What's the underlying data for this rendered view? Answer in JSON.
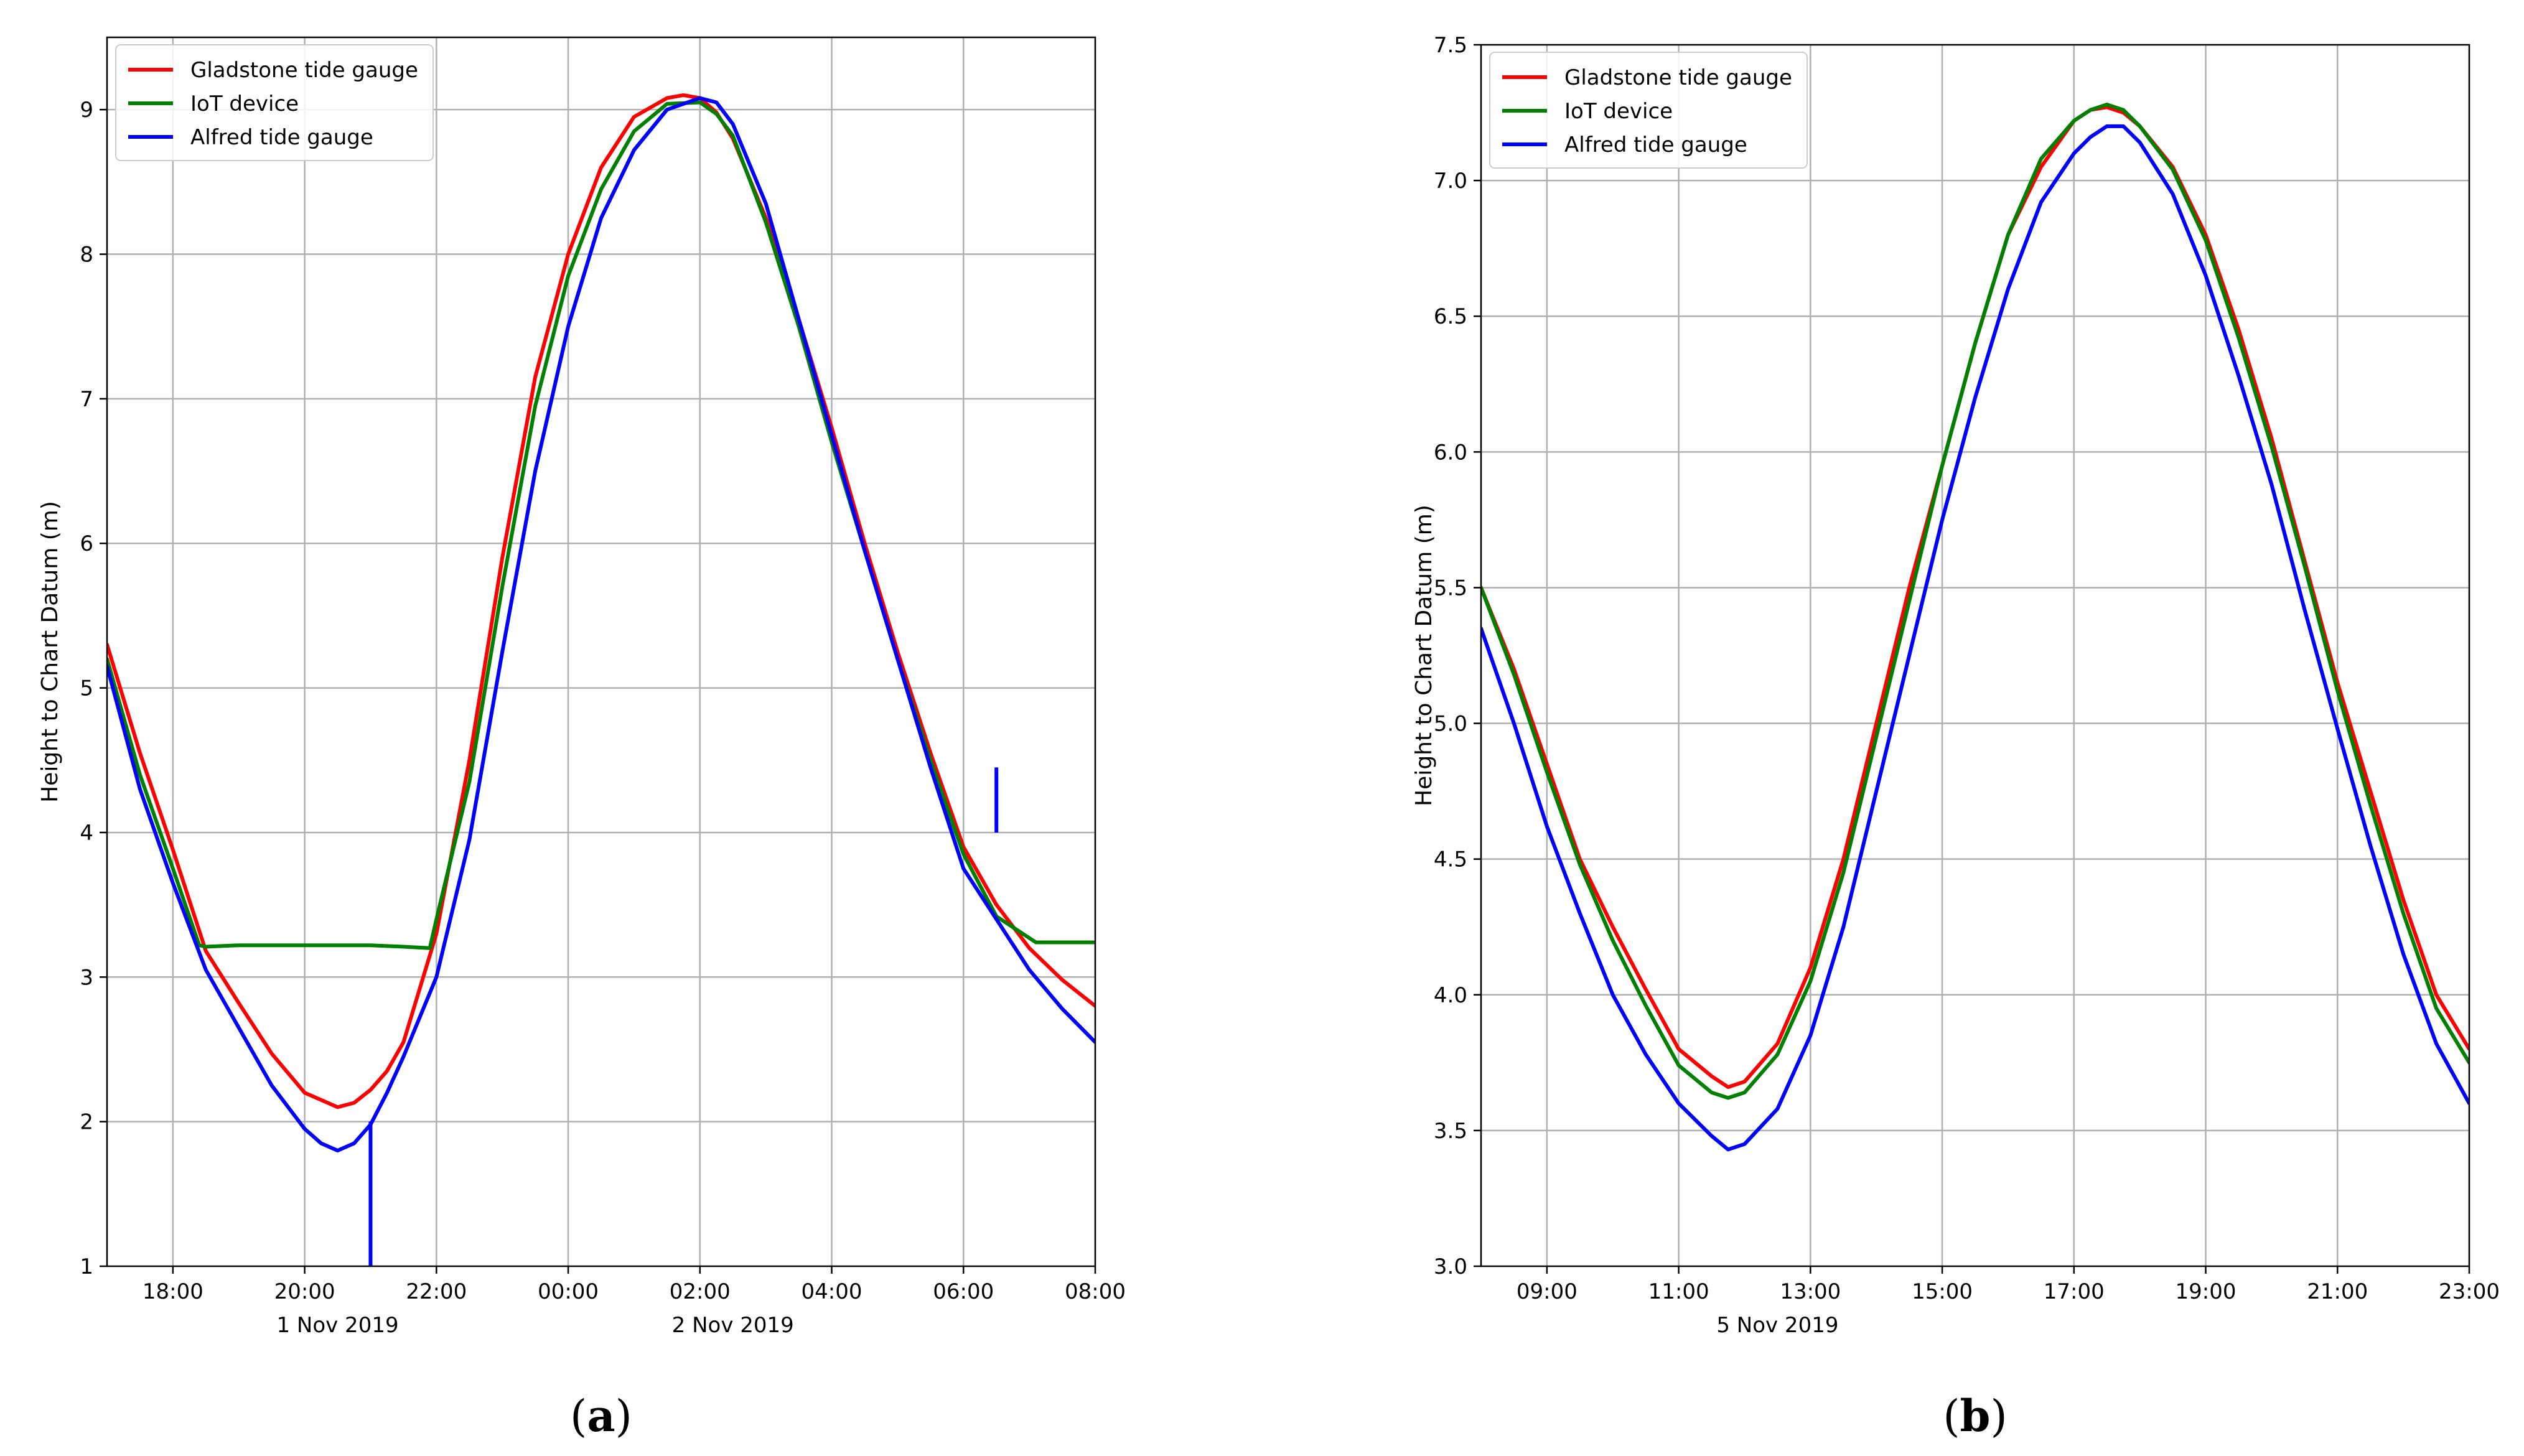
{
  "chart_data": [
    {
      "type": "line",
      "panel": "a",
      "caption": "a",
      "xlabel": "",
      "ylabel": "Height to Chart Datum (m)",
      "x_unit": "hours since 1 Nov 2019 00:00",
      "xlim": [
        -7,
        8
      ],
      "ylim": [
        1,
        9.5
      ],
      "xticks": [
        -6,
        -4,
        -2,
        0,
        2,
        4,
        6,
        8
      ],
      "xtick_labels": [
        "18:00",
        "20:00",
        "22:00",
        "00:00",
        "02:00",
        "04:00",
        "06:00",
        "08:00"
      ],
      "date_labels": [
        {
          "x": -3.5,
          "text": "1 Nov 2019"
        },
        {
          "x": 2.5,
          "text": "2 Nov 2019"
        }
      ],
      "yticks": [
        1,
        2,
        3,
        4,
        5,
        6,
        7,
        8,
        9
      ],
      "ytick_labels": [
        "1",
        "2",
        "3",
        "4",
        "5",
        "6",
        "7",
        "8",
        "9"
      ],
      "grid": true,
      "legend_position": "top-left",
      "series": [
        {
          "name": "Gladstone tide gauge",
          "color": "#ff0000",
          "x": [
            -7,
            -6.5,
            -6,
            -5.5,
            -5,
            -4.5,
            -4,
            -3.5,
            -3.25,
            -3,
            -2.75,
            -2.5,
            -2,
            -1.5,
            -1,
            -0.5,
            0,
            0.5,
            1,
            1.5,
            1.75,
            2,
            2.25,
            2.5,
            3,
            3.5,
            4,
            4.5,
            5,
            5.5,
            6,
            6.5,
            7,
            7.5,
            8
          ],
          "y": [
            5.3,
            4.55,
            3.88,
            3.18,
            2.82,
            2.47,
            2.2,
            2.1,
            2.13,
            2.22,
            2.35,
            2.55,
            3.3,
            4.5,
            5.9,
            7.15,
            8.0,
            8.6,
            8.95,
            9.08,
            9.1,
            9.08,
            8.98,
            8.8,
            8.25,
            7.55,
            6.8,
            6.0,
            5.25,
            4.55,
            3.9,
            3.5,
            3.2,
            2.98,
            2.8
          ]
        },
        {
          "name": "IoT device",
          "color": "#008000",
          "x": [
            -7,
            -6.5,
            -6,
            -5.6,
            -5.5,
            -5,
            -4,
            -3,
            -2.5,
            -2.1,
            -2,
            -1.5,
            -1,
            -0.5,
            0,
            0.5,
            1,
            1.5,
            2,
            2.25,
            2.5,
            3,
            3.5,
            4,
            4.5,
            5,
            5.5,
            6,
            6.5,
            6.9,
            7.1,
            7.5,
            8
          ],
          "y": [
            5.2,
            4.4,
            3.75,
            3.22,
            3.21,
            3.22,
            3.22,
            3.22,
            3.21,
            3.2,
            3.4,
            4.35,
            5.7,
            6.95,
            7.85,
            8.45,
            8.85,
            9.04,
            9.05,
            8.97,
            8.82,
            8.22,
            7.5,
            6.7,
            5.95,
            5.2,
            4.5,
            3.85,
            3.42,
            3.3,
            3.24,
            3.24,
            3.24
          ]
        },
        {
          "name": "Alfred tide gauge",
          "color": "#0000ff",
          "x": [
            -7,
            -6.5,
            -6,
            -5.5,
            -5,
            -4.5,
            -4,
            -3.75,
            -3.5,
            -3.25,
            -3,
            -2.75,
            -2.5,
            -2,
            -1.5,
            -1,
            -0.5,
            0,
            0.5,
            1,
            1.5,
            2,
            2.25,
            2.5,
            3,
            3.5,
            4,
            4.5,
            5,
            5.5,
            6,
            6.5,
            7,
            7.5,
            8
          ],
          "y": [
            5.15,
            4.3,
            3.65,
            3.05,
            2.65,
            2.25,
            1.95,
            1.85,
            1.8,
            1.85,
            1.98,
            2.2,
            2.45,
            3.0,
            3.95,
            5.25,
            6.5,
            7.5,
            8.25,
            8.72,
            9.0,
            9.08,
            9.05,
            8.9,
            8.35,
            7.55,
            6.75,
            5.95,
            5.2,
            4.45,
            3.75,
            3.4,
            3.05,
            2.78,
            2.55
          ],
          "spikes": [
            {
              "x": -3.0,
              "y_from": 2.0,
              "y_to": 1.0
            },
            {
              "x": 6.5,
              "y_from": 4.0,
              "y_to": 4.45
            }
          ]
        }
      ]
    },
    {
      "type": "line",
      "panel": "b",
      "caption": "b",
      "xlabel": "",
      "ylabel": "Height to Chart Datum (m)",
      "x_unit": "hours since 5 Nov 2019 00:00",
      "xlim": [
        8,
        23
      ],
      "ylim": [
        3.0,
        7.5
      ],
      "xticks": [
        9,
        11,
        13,
        15,
        17,
        19,
        21,
        23
      ],
      "xtick_labels": [
        "09:00",
        "11:00",
        "13:00",
        "15:00",
        "17:00",
        "19:00",
        "21:00",
        "23:00"
      ],
      "date_labels": [
        {
          "x": 12.5,
          "text": "5 Nov 2019"
        }
      ],
      "yticks": [
        3.0,
        3.5,
        4.0,
        4.5,
        5.0,
        5.5,
        6.0,
        6.5,
        7.0,
        7.5
      ],
      "ytick_labels": [
        "3.0",
        "3.5",
        "4.0",
        "4.5",
        "5.0",
        "5.5",
        "6.0",
        "6.5",
        "7.0",
        "7.5"
      ],
      "grid": true,
      "legend_position": "top-left",
      "series": [
        {
          "name": "Gladstone tide gauge",
          "color": "#ff0000",
          "x": [
            8,
            8.5,
            9,
            9.5,
            10,
            10.5,
            11,
            11.5,
            11.75,
            12,
            12.5,
            13,
            13.5,
            14,
            14.5,
            15,
            15.5,
            16,
            16.5,
            17,
            17.25,
            17.5,
            17.75,
            18,
            18.5,
            19,
            19.5,
            20,
            20.5,
            21,
            21.5,
            22,
            22.5,
            23
          ],
          "y": [
            5.5,
            5.2,
            4.85,
            4.5,
            4.25,
            4.02,
            3.8,
            3.7,
            3.66,
            3.68,
            3.82,
            4.1,
            4.5,
            5.0,
            5.5,
            5.95,
            6.4,
            6.8,
            7.05,
            7.22,
            7.26,
            7.27,
            7.25,
            7.2,
            7.05,
            6.8,
            6.45,
            6.05,
            5.6,
            5.15,
            4.75,
            4.35,
            4.0,
            3.8
          ]
        },
        {
          "name": "IoT device",
          "color": "#008000",
          "x": [
            8,
            8.5,
            9,
            9.5,
            10,
            10.5,
            11,
            11.5,
            11.75,
            12,
            12.5,
            13,
            13.5,
            14,
            14.5,
            15,
            15.5,
            16,
            16.5,
            17,
            17.25,
            17.5,
            17.75,
            18,
            18.5,
            19,
            19.5,
            20,
            20.5,
            21,
            21.5,
            22,
            22.5,
            23
          ],
          "y": [
            5.5,
            5.18,
            4.82,
            4.48,
            4.2,
            3.96,
            3.74,
            3.64,
            3.62,
            3.64,
            3.78,
            4.05,
            4.45,
            4.95,
            5.45,
            5.95,
            6.4,
            6.8,
            7.08,
            7.22,
            7.26,
            7.28,
            7.26,
            7.2,
            7.04,
            6.78,
            6.42,
            6.02,
            5.58,
            5.12,
            4.7,
            4.3,
            3.95,
            3.75
          ]
        },
        {
          "name": "Alfred tide gauge",
          "color": "#0000ff",
          "x": [
            8,
            8.5,
            9,
            9.5,
            10,
            10.5,
            11,
            11.5,
            11.75,
            12,
            12.5,
            13,
            13.5,
            14,
            14.5,
            15,
            15.5,
            16,
            16.5,
            17,
            17.25,
            17.5,
            17.75,
            18,
            18.5,
            19,
            19.5,
            20,
            20.5,
            21,
            21.5,
            22,
            22.5,
            23
          ],
          "y": [
            5.35,
            5.0,
            4.62,
            4.3,
            4.0,
            3.78,
            3.6,
            3.48,
            3.43,
            3.45,
            3.58,
            3.85,
            4.25,
            4.75,
            5.25,
            5.75,
            6.2,
            6.6,
            6.92,
            7.1,
            7.16,
            7.2,
            7.2,
            7.14,
            6.95,
            6.65,
            6.28,
            5.88,
            5.42,
            4.98,
            4.55,
            4.15,
            3.82,
            3.6
          ]
        }
      ]
    }
  ]
}
